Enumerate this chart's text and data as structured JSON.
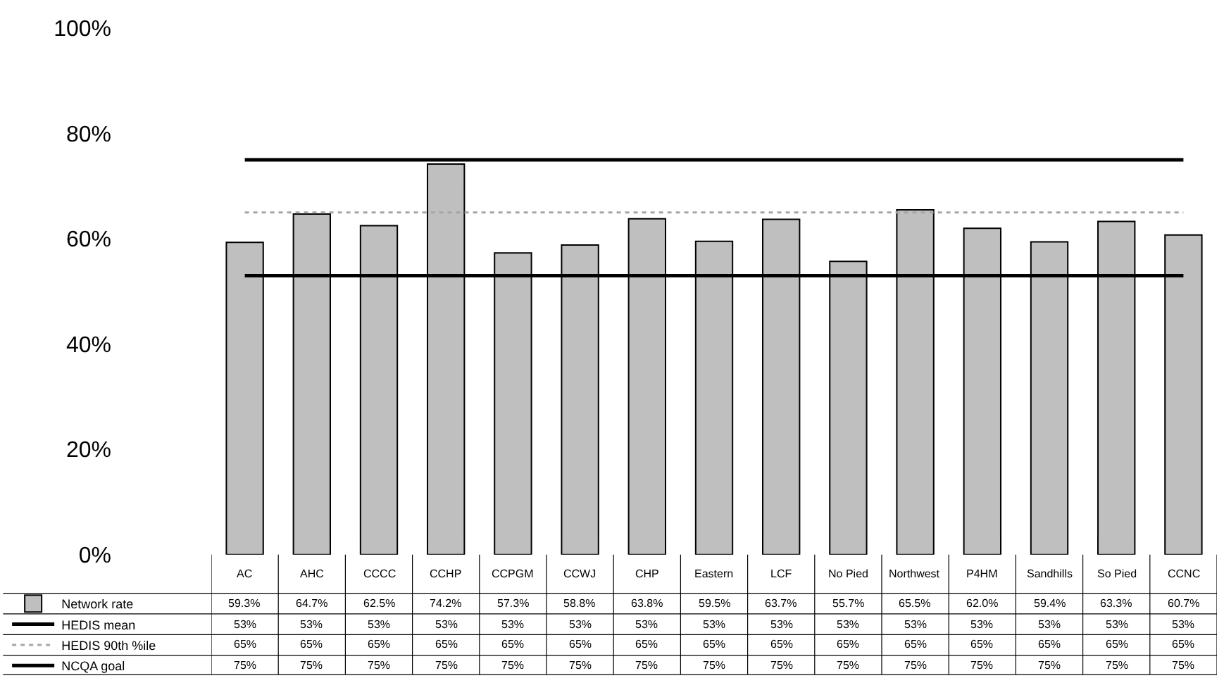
{
  "chart_data": {
    "type": "bar",
    "categories": [
      "AC",
      "AHC",
      "CCCC",
      "CCHP",
      "CCPGM",
      "CCWJ",
      "CHP",
      "Eastern",
      "LCF",
      "No Pied",
      "Northwest",
      "P4HM",
      "Sandhills",
      "So Pied",
      "CCNC"
    ],
    "series": [
      {
        "name": "Network rate",
        "color": "#bfbfbf",
        "values": [
          59.3,
          64.7,
          62.5,
          74.2,
          57.3,
          58.8,
          63.8,
          59.5,
          63.7,
          55.7,
          65.5,
          62.0,
          59.4,
          63.3,
          60.7
        ],
        "value_labels": [
          "59.3%",
          "64.7%",
          "62.5%",
          "74.2%",
          "57.3%",
          "58.8%",
          "63.8%",
          "59.5%",
          "63.7%",
          "55.7%",
          "65.5%",
          "62.0%",
          "59.4%",
          "63.3%",
          "60.7%"
        ]
      },
      {
        "name": "HEDIS mean",
        "type": "line",
        "color": "#000000",
        "line_style": "solid",
        "values": [
          53,
          53,
          53,
          53,
          53,
          53,
          53,
          53,
          53,
          53,
          53,
          53,
          53,
          53,
          53
        ],
        "value_labels": [
          "53%",
          "53%",
          "53%",
          "53%",
          "53%",
          "53%",
          "53%",
          "53%",
          "53%",
          "53%",
          "53%",
          "53%",
          "53%",
          "53%",
          "53%"
        ]
      },
      {
        "name": "HEDIS 90th %ile",
        "type": "line",
        "color": "#a6a6a6",
        "line_style": "dotted",
        "values": [
          65,
          65,
          65,
          65,
          65,
          65,
          65,
          65,
          65,
          65,
          65,
          65,
          65,
          65,
          65
        ],
        "value_labels": [
          "65%",
          "65%",
          "65%",
          "65%",
          "65%",
          "65%",
          "65%",
          "65%",
          "65%",
          "65%",
          "65%",
          "65%",
          "65%",
          "65%",
          "65%"
        ]
      },
      {
        "name": "NCQA goal",
        "type": "line",
        "color": "#000000",
        "line_style": "solid",
        "values": [
          75,
          75,
          75,
          75,
          75,
          75,
          75,
          75,
          75,
          75,
          75,
          75,
          75,
          75,
          75
        ],
        "value_labels": [
          "75%",
          "75%",
          "75%",
          "75%",
          "75%",
          "75%",
          "75%",
          "75%",
          "75%",
          "75%",
          "75%",
          "75%",
          "75%",
          "75%",
          "75%"
        ]
      }
    ],
    "ylim": [
      0,
      100
    ],
    "yticks": [
      {
        "value": 0,
        "label": "0%"
      },
      {
        "value": 20,
        "label": "20%"
      },
      {
        "value": 40,
        "label": "40%"
      },
      {
        "value": 60,
        "label": "60%"
      },
      {
        "value": 80,
        "label": "80%"
      },
      {
        "value": 100,
        "label": "100%"
      }
    ],
    "legend": "bottom left",
    "marker": "none"
  }
}
